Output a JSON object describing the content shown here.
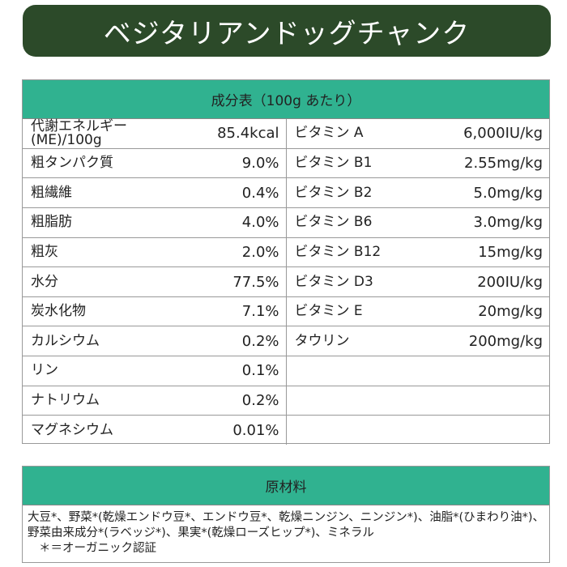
{
  "title": "ベジタリアンドッグチャンク",
  "table": {
    "header": "成分表（100g あたり）",
    "left": [
      {
        "name": "代謝エネルギー (ME)/100g",
        "value": "85.4kcal"
      },
      {
        "name": "粗タンパク質",
        "value": "9.0%"
      },
      {
        "name": "粗繊維",
        "value": "0.4%"
      },
      {
        "name": "粗脂肪",
        "value": "4.0%"
      },
      {
        "name": "粗灰",
        "value": "2.0%"
      },
      {
        "name": "水分",
        "value": "77.5%"
      },
      {
        "name": "炭水化物",
        "value": "7.1%"
      },
      {
        "name": "カルシウム",
        "value": "0.2%"
      },
      {
        "name": "リン",
        "value": "0.1%"
      },
      {
        "name": "ナトリウム",
        "value": "0.2%"
      },
      {
        "name": "マグネシウム",
        "value": "0.01%"
      }
    ],
    "right": [
      {
        "name": "ビタミン A",
        "value": "6,000IU/kg"
      },
      {
        "name": "ビタミン B1",
        "value": "2.55mg/kg"
      },
      {
        "name": "ビタミン B2",
        "value": "5.0mg/kg"
      },
      {
        "name": "ビタミン B6",
        "value": "3.0mg/kg"
      },
      {
        "name": "ビタミン B12",
        "value": "15mg/kg"
      },
      {
        "name": "ビタミン D3",
        "value": "200IU/kg"
      },
      {
        "name": "ビタミン E",
        "value": "20mg/kg"
      },
      {
        "name": "タウリン",
        "value": "200mg/kg"
      },
      {
        "name": "",
        "value": ""
      },
      {
        "name": "",
        "value": ""
      },
      {
        "name": "",
        "value": ""
      }
    ]
  },
  "ingredients": {
    "header": "原材料",
    "text": "大豆*、野菜*(乾燥エンドウ豆*、エンドウ豆*、乾燥ニンジン、ニンジン*)、油脂*(ひまわり油*)、野菜由来成分*(ラベッジ*)、果実*(乾燥ローズヒップ*)、ミネラル",
    "note": "＊＝オーガニック認証"
  }
}
